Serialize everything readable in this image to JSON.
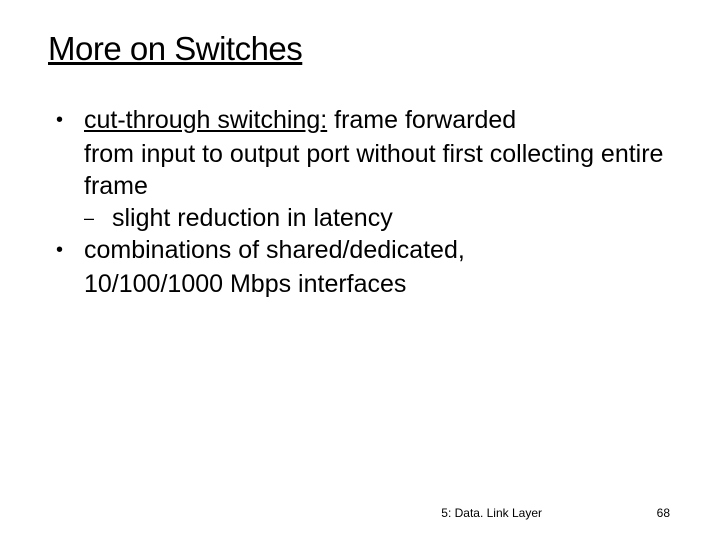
{
  "slide": {
    "title": "More on Switches",
    "bullets": [
      {
        "term": "cut-through switching:",
        "rest": " frame forwarded",
        "wrap": "from input to output port without first collecting entire frame",
        "sub": [
          "slight reduction in latency"
        ]
      },
      {
        "term": "",
        "rest": "combinations of shared/dedicated,",
        "wrap": "10/100/1000 Mbps interfaces",
        "sub": []
      }
    ],
    "footer": {
      "section": "5: Data. Link Layer",
      "page": "68"
    }
  },
  "style": {
    "title_fontsize": 33,
    "body_fontsize": 25,
    "footer_fontsize": 12,
    "text_color": "#000000",
    "background_color": "#ffffff"
  }
}
